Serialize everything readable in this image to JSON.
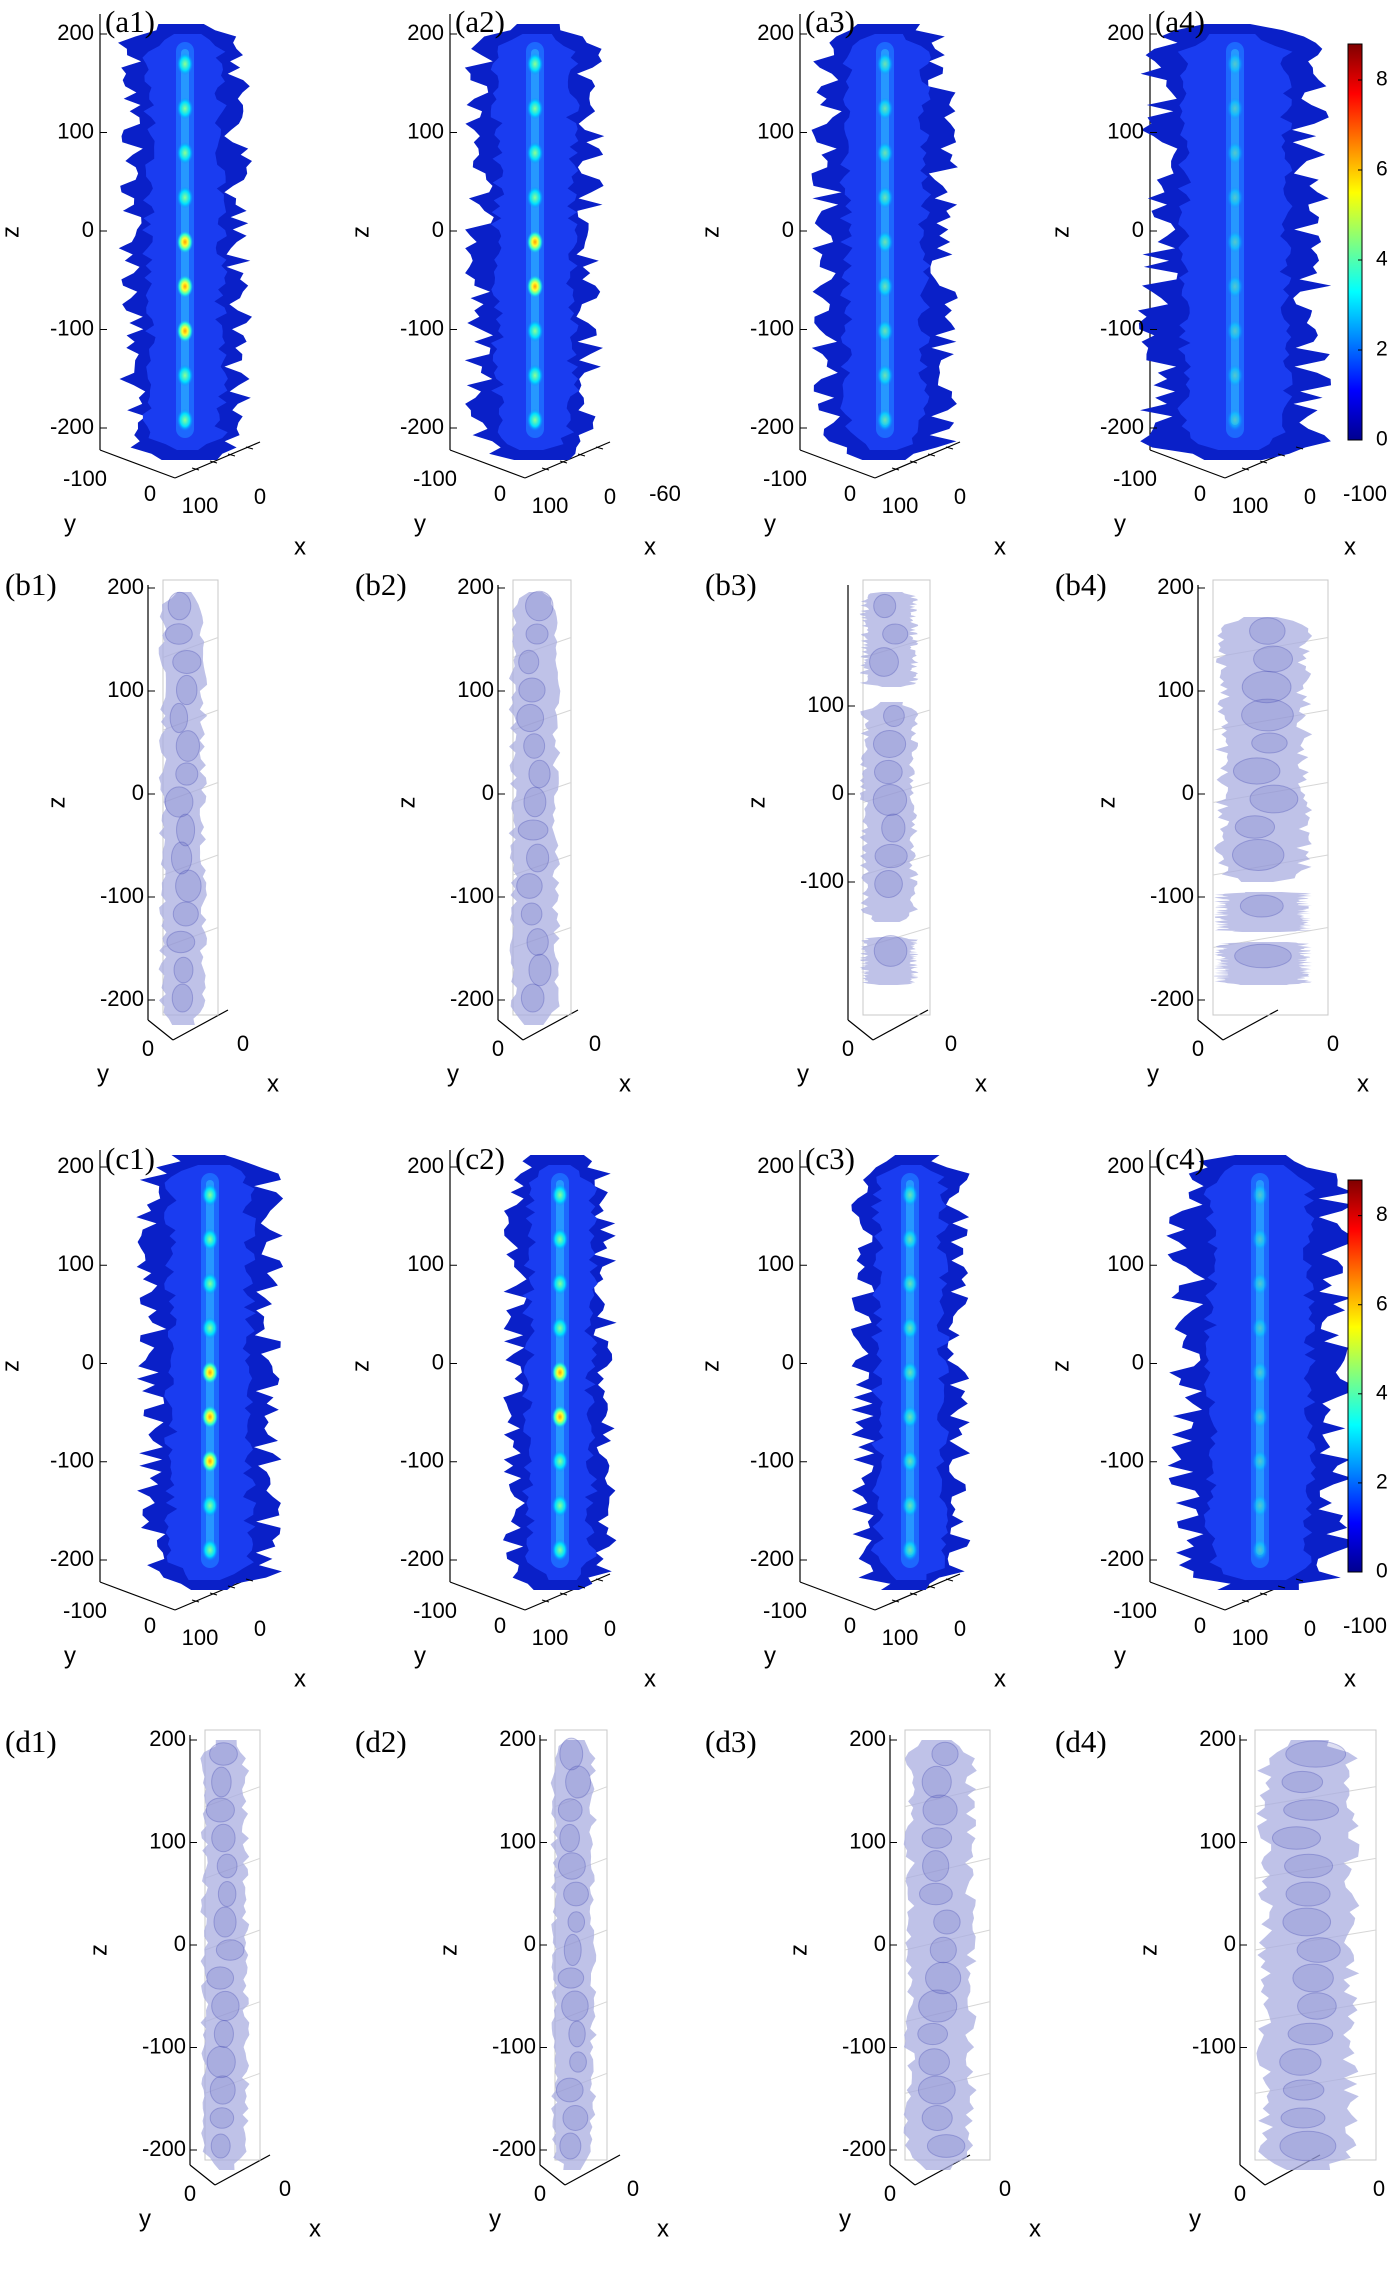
{
  "figure": {
    "rows": [
      {
        "id": "a",
        "style": "colormap",
        "panels": [
          {
            "label": "(a1)",
            "z_ticks": [
              "200",
              "100",
              "0",
              "-100",
              "-200"
            ],
            "y_ticks": [
              "-100",
              "0",
              "100"
            ],
            "x_ticks": [
              "0"
            ],
            "show_colorbar": false
          },
          {
            "label": "(a2)",
            "z_ticks": [
              "200",
              "100",
              "0",
              "-100",
              "-200"
            ],
            "y_ticks": [
              "-100",
              "0",
              "100"
            ],
            "x_ticks": [
              "0",
              "-60"
            ],
            "show_colorbar": false
          },
          {
            "label": "(a3)",
            "z_ticks": [
              "200",
              "100",
              "0",
              "-100",
              "-200"
            ],
            "y_ticks": [
              "-100",
              "0",
              "100"
            ],
            "x_ticks": [
              "0"
            ],
            "show_colorbar": false
          },
          {
            "label": "(a4)",
            "z_ticks": [
              "200",
              "100",
              "0",
              "-100",
              "-200"
            ],
            "y_ticks": [
              "-100",
              "0",
              "100"
            ],
            "x_ticks": [
              "0",
              "-100"
            ],
            "show_colorbar": true
          }
        ]
      },
      {
        "id": "b",
        "style": "isosurface",
        "panels": [
          {
            "label": "(b1)",
            "z_ticks": [
              "200",
              "100",
              "0",
              "-100",
              "-200"
            ],
            "y_ticks": [
              "0"
            ],
            "x_ticks": [
              "0"
            ]
          },
          {
            "label": "(b2)",
            "z_ticks": [
              "200",
              "100",
              "0",
              "-100",
              "-200"
            ],
            "y_ticks": [
              "0"
            ],
            "x_ticks": [
              "0"
            ]
          },
          {
            "label": "(b3)",
            "z_ticks": [
              "100",
              "0",
              "-100"
            ],
            "y_ticks": [
              "0"
            ],
            "x_ticks": [
              "0"
            ]
          },
          {
            "label": "(b4)",
            "z_ticks": [
              "200",
              "100",
              "0",
              "-100",
              "-200"
            ],
            "y_ticks": [
              "0"
            ],
            "x_ticks": [
              "0"
            ]
          }
        ]
      },
      {
        "id": "c",
        "style": "colormap",
        "panels": [
          {
            "label": "(c1)",
            "z_ticks": [
              "200",
              "100",
              "0",
              "-100",
              "-200"
            ],
            "y_ticks": [
              "-100",
              "0",
              "100"
            ],
            "x_ticks": [
              "0"
            ],
            "show_colorbar": false
          },
          {
            "label": "(c2)",
            "z_ticks": [
              "200",
              "100",
              "0",
              "-100",
              "-200"
            ],
            "y_ticks": [
              "-100",
              "0",
              "100"
            ],
            "x_ticks": [
              "0"
            ],
            "show_colorbar": false
          },
          {
            "label": "(c3)",
            "z_ticks": [
              "200",
              "100",
              "0",
              "-100",
              "-200"
            ],
            "y_ticks": [
              "-100",
              "0",
              "100"
            ],
            "x_ticks": [
              "0"
            ],
            "show_colorbar": false
          },
          {
            "label": "(c4)",
            "z_ticks": [
              "200",
              "100",
              "0",
              "-100",
              "-200"
            ],
            "y_ticks": [
              "-100",
              "0",
              "100"
            ],
            "x_ticks": [
              "0",
              "-100"
            ],
            "show_colorbar": true
          }
        ]
      },
      {
        "id": "d",
        "style": "isosurface",
        "panels": [
          {
            "label": "(d1)",
            "z_ticks": [
              "200",
              "100",
              "0",
              "-100",
              "-200"
            ],
            "y_ticks": [
              "0"
            ],
            "x_ticks": [
              "0"
            ]
          },
          {
            "label": "(d2)",
            "z_ticks": [
              "200",
              "100",
              "0",
              "-100",
              "-200"
            ],
            "y_ticks": [
              "0"
            ],
            "x_ticks": [
              "0"
            ]
          },
          {
            "label": "(d3)",
            "z_ticks": [
              "200",
              "100",
              "0",
              "-100",
              "-200"
            ],
            "y_ticks": [
              "0"
            ],
            "x_ticks": [
              "0"
            ]
          },
          {
            "label": "(d4)",
            "z_ticks": [
              "200",
              "100",
              "0",
              "-100"
            ],
            "y_ticks": [
              "0"
            ],
            "x_ticks": [
              "0"
            ]
          }
        ]
      }
    ],
    "axis_names": {
      "z": "z",
      "y": "y",
      "x": "x"
    },
    "colorbar": {
      "ticks": [
        "8",
        "6",
        "4",
        "2",
        "0"
      ],
      "range": [
        0,
        8.8
      ],
      "colormap": [
        "#00008f",
        "#0000ff",
        "#0080ff",
        "#00ffff",
        "#80ff80",
        "#ffff00",
        "#ff8000",
        "#ff0000",
        "#800000"
      ]
    },
    "colors": {
      "colormap_body": "#1630d8",
      "colormap_core": "#00aaff",
      "iso_fill": "#a9aee0",
      "iso_stroke": "#4a4fb5"
    }
  }
}
